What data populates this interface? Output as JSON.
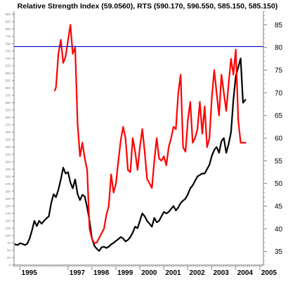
{
  "chart_data": {
    "type": "line",
    "title": "Relative Strength Index (59.0560), RTS (590.170, 596.550, 585.150, 585.150)",
    "xlabel": "",
    "ylabel": "",
    "x_ticks": [
      "1995",
      "1997",
      "1998",
      "1999",
      "2000",
      "2001",
      "2002",
      "2003",
      "2004",
      "2005"
    ],
    "x_tick_values": [
      1995.0,
      1997.0,
      1998.0,
      1999.0,
      2000.0,
      2001.0,
      2002.0,
      2003.0,
      2004.0,
      2005.0
    ],
    "xlim": [
      1994.75,
      2005.15
    ],
    "right_axis": {
      "ylim": [
        32,
        88
      ],
      "ticks": [
        35,
        40,
        45,
        50,
        55,
        60,
        65,
        70,
        75,
        80,
        85
      ],
      "tick_labels": [
        "35",
        "40",
        "45",
        "50",
        "55",
        "60",
        "65",
        "70",
        "75",
        "80",
        "85"
      ]
    },
    "left_axis": {
      "ylim": [
        0,
        860
      ],
      "ticks": [
        0,
        25,
        50,
        75,
        100,
        125,
        150,
        175,
        200,
        225,
        250,
        275,
        300,
        325,
        350,
        375,
        400,
        425,
        450,
        475,
        500,
        525,
        550,
        575,
        600,
        625,
        650,
        675,
        700,
        725,
        750,
        775,
        800,
        825,
        850
      ],
      "tick_labels": [
        "0",
        "25",
        "50",
        "75",
        "100",
        "125",
        "150",
        "175",
        "200",
        "225",
        "250",
        "275",
        "300",
        "325",
        "350",
        "375",
        "400",
        "425",
        "450",
        "475",
        "500",
        "525",
        "550",
        "575",
        "600",
        "625",
        "650",
        "675",
        "700",
        "725",
        "750",
        "775",
        "800",
        "825",
        "850"
      ]
    },
    "reference_line": {
      "value": 80.2,
      "axis": "right",
      "color": "#0000cc"
    },
    "grid": false,
    "legend": "none",
    "series": [
      {
        "axis": "left",
        "color": "#000000",
        "x": [
          1994.8,
          1994.9,
          1995.0,
          1995.1,
          1995.2,
          1995.3,
          1995.4,
          1995.5,
          1995.6,
          1995.7,
          1995.8,
          1995.9,
          1996.0,
          1996.1,
          1996.2,
          1996.3,
          1996.4,
          1996.5,
          1996.6,
          1996.7,
          1996.8,
          1996.9,
          1997.0,
          1997.1,
          1997.2,
          1997.3,
          1997.4,
          1997.5,
          1997.6,
          1997.7,
          1997.8,
          1997.9,
          1998.0,
          1998.1,
          1998.2,
          1998.3,
          1998.4,
          1998.5,
          1998.6,
          1998.7,
          1998.8,
          1998.9,
          1999.0,
          1999.1,
          1999.2,
          1999.3,
          1999.4,
          1999.5,
          1999.6,
          1999.7,
          1999.8,
          1999.9,
          2000.0,
          2000.1,
          2000.2,
          2000.3,
          2000.4,
          2000.5,
          2000.6,
          2000.7,
          2000.8,
          2000.9,
          2001.0,
          2001.1,
          2001.2,
          2001.3,
          2001.4,
          2001.5,
          2001.6,
          2001.7,
          2001.8,
          2001.9,
          2002.0,
          2002.1,
          2002.2,
          2002.3,
          2002.4,
          2002.5,
          2002.6,
          2002.7,
          2002.8,
          2002.9,
          2003.0,
          2003.1,
          2003.2,
          2003.3,
          2003.4,
          2003.5,
          2003.6,
          2003.7,
          2003.8,
          2003.9,
          2004.0,
          2004.1,
          2004.2,
          2004.3,
          2004.4
        ],
        "y": [
          70,
          68,
          74,
          72,
          68,
          72,
          90,
          118,
          150,
          132,
          150,
          140,
          150,
          158,
          165,
          210,
          240,
          230,
          255,
          290,
          330,
          310,
          315,
          280,
          260,
          290,
          240,
          220,
          238,
          232,
          195,
          150,
          90,
          65,
          55,
          48,
          60,
          62,
          58,
          62,
          70,
          75,
          82,
          88,
          95,
          90,
          80,
          85,
          95,
          110,
          130,
          125,
          150,
          175,
          165,
          150,
          140,
          130,
          160,
          145,
          150,
          165,
          180,
          175,
          180,
          190,
          200,
          185,
          195,
          210,
          218,
          225,
          240,
          260,
          270,
          285,
          300,
          305,
          310,
          310,
          325,
          340,
          370,
          390,
          400,
          380,
          420,
          430,
          380,
          410,
          450,
          560,
          640,
          670,
          700,
          550,
          560
        ]
      },
      {
        "axis": "right",
        "color": "#ff0000",
        "x": [
          1996.45,
          1996.5,
          1996.6,
          1996.7,
          1996.8,
          1996.9,
          1997.0,
          1997.1,
          1997.2,
          1997.3,
          1997.4,
          1997.5,
          1997.6,
          1997.7,
          1997.8,
          1997.9,
          1998.0,
          1998.1,
          1998.2,
          1998.3,
          1998.4,
          1998.5,
          1998.6,
          1998.7,
          1998.8,
          1998.9,
          1999.0,
          1999.1,
          1999.2,
          1999.3,
          1999.4,
          1999.5,
          1999.6,
          1999.7,
          1999.8,
          1999.9,
          2000.0,
          2000.1,
          2000.2,
          2000.3,
          2000.4,
          2000.5,
          2000.6,
          2000.7,
          2000.8,
          2000.9,
          2001.0,
          2001.1,
          2001.2,
          2001.3,
          2001.4,
          2001.5,
          2001.6,
          2001.7,
          2001.8,
          2001.9,
          2002.0,
          2002.1,
          2002.2,
          2002.3,
          2002.4,
          2002.5,
          2002.6,
          2002.7,
          2002.8,
          2002.9,
          2003.0,
          2003.1,
          2003.2,
          2003.3,
          2003.4,
          2003.5,
          2003.6,
          2003.7,
          2003.8,
          2003.9,
          2004.0,
          2004.1,
          2004.2,
          2004.3,
          2004.4
        ],
        "y": [
          70.5,
          71.2,
          78.6,
          81.7,
          76.6,
          78.0,
          81.5,
          85.0,
          78.6,
          80.0,
          63.0,
          56.0,
          59.0,
          55.5,
          53.0,
          40.0,
          37.8,
          36.8,
          37.0,
          38.0,
          39.0,
          40.0,
          43.0,
          45.0,
          52.0,
          48.0,
          50.0,
          55.0,
          59.5,
          62.5,
          60.0,
          53.0,
          52.5,
          60.0,
          57.0,
          53.0,
          58.0,
          62.0,
          57.0,
          51.0,
          50.0,
          49.0,
          55.0,
          60.0,
          55.5,
          55.0,
          56.0,
          54.0,
          58.0,
          60.0,
          62.5,
          62.0,
          70.0,
          74.0,
          58.0,
          57.0,
          64.0,
          68.0,
          59.0,
          60.0,
          62.0,
          68.0,
          61.0,
          67.0,
          58.0,
          60.0,
          69.0,
          75.0,
          70.0,
          65.0,
          74.0,
          70.0,
          66.0,
          72.0,
          77.5,
          74.0,
          79.5,
          64.0,
          59.0,
          59.0,
          59.0
        ]
      }
    ]
  }
}
